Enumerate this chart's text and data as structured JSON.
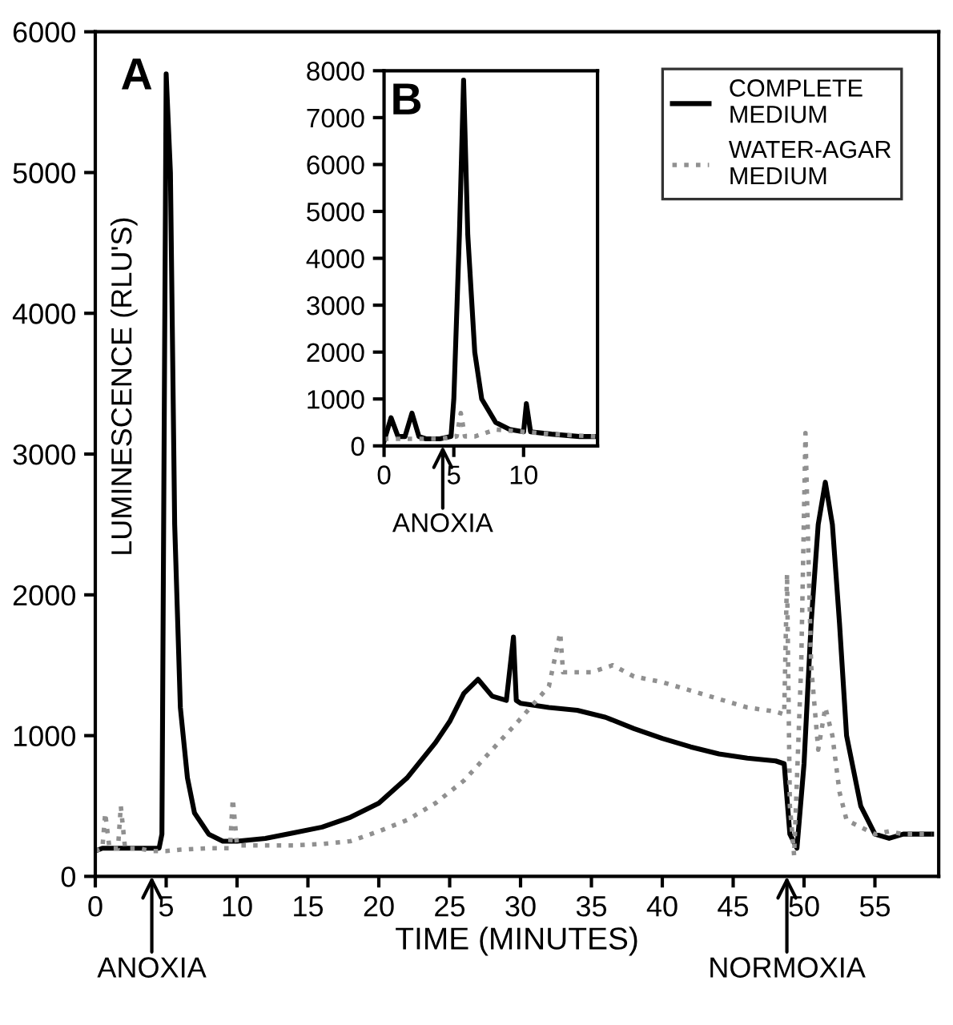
{
  "chart_data": [
    {
      "type": "line",
      "xlabel": "TIME (MINUTES)",
      "ylabel": "LUMINESCENCE (RLU'S)",
      "xlim": [
        0,
        59.5
      ],
      "ylim": [
        0,
        6000
      ],
      "xticks": [
        0,
        5,
        10,
        15,
        20,
        25,
        30,
        35,
        40,
        45,
        50,
        55
      ],
      "yticks": [
        0,
        1000,
        2000,
        3000,
        4000,
        5000,
        6000
      ],
      "grid": false,
      "legend": "top right",
      "annotations": [
        "A",
        "ANOXIA",
        "NORMOXIA"
      ],
      "series": [
        {
          "name": "COMPLETE\nMEDIUM",
          "color": "#000000",
          "line_style": "solid",
          "x": [
            0,
            0.5,
            1,
            2,
            3,
            4.5,
            4.7,
            5.0,
            5.3,
            5.6,
            6,
            6.5,
            7,
            8,
            9,
            10,
            12,
            14,
            16,
            18,
            20,
            22,
            24,
            25,
            26,
            27,
            28,
            29,
            29.5,
            29.7,
            30,
            32,
            34,
            36,
            38,
            40,
            42,
            44,
            46,
            48,
            48.6,
            49,
            49.5,
            50,
            50.5,
            51,
            51.5,
            52,
            52.5,
            53,
            54,
            55,
            56,
            57,
            58,
            59
          ],
          "values": [
            180,
            200,
            200,
            200,
            200,
            200,
            300,
            5700,
            5000,
            2500,
            1200,
            700,
            450,
            300,
            250,
            250,
            270,
            310,
            350,
            420,
            520,
            700,
            950,
            1100,
            1300,
            1400,
            1280,
            1250,
            1700,
            1250,
            1230,
            1200,
            1180,
            1130,
            1050,
            980,
            920,
            870,
            840,
            820,
            800,
            300,
            200,
            800,
            1800,
            2500,
            2800,
            2500,
            1800,
            1000,
            500,
            300,
            270,
            300,
            300,
            300
          ]
        },
        {
          "name": "WATER-AGAR\nMEDIUM",
          "color": "#909090",
          "line_style": "dotted",
          "x": [
            0,
            0.5,
            0.7,
            1,
            1.6,
            1.8,
            2.1,
            3,
            4,
            5,
            6,
            8,
            9.5,
            9.7,
            10,
            12,
            14,
            16,
            18,
            20,
            22,
            24,
            26,
            28,
            30,
            32,
            32.8,
            33,
            34,
            35,
            36.5,
            38,
            40,
            42,
            44,
            46,
            48,
            48.6,
            48.8,
            49,
            49.3,
            49.8,
            50.1,
            50.5,
            51,
            51.5,
            52,
            52.5,
            53,
            54,
            55,
            56,
            57,
            58,
            59
          ],
          "values": [
            180,
            200,
            450,
            200,
            200,
            500,
            200,
            200,
            180,
            180,
            190,
            200,
            200,
            550,
            220,
            220,
            220,
            230,
            250,
            320,
            400,
            520,
            680,
            900,
            1120,
            1350,
            1730,
            1450,
            1450,
            1450,
            1500,
            1420,
            1380,
            1320,
            1260,
            1200,
            1170,
            1150,
            2150,
            500,
            150,
            1500,
            3150,
            1500,
            900,
            1200,
            1000,
            600,
            400,
            350,
            300,
            320,
            300,
            300,
            300
          ]
        }
      ]
    },
    {
      "type": "line",
      "xlim": [
        0,
        15.3
      ],
      "ylim": [
        0,
        8000
      ],
      "xticks": [
        0,
        5,
        10
      ],
      "yticks": [
        0,
        1000,
        2000,
        3000,
        4000,
        5000,
        6000,
        7000,
        8000
      ],
      "grid": false,
      "legend": false,
      "annotations": [
        "B",
        "ANOXIA"
      ],
      "series": [
        {
          "color": "#000000",
          "line_style": "solid",
          "x": [
            0,
            0.5,
            1,
            1.5,
            2,
            2.5,
            3,
            4,
            4.8,
            5,
            5.4,
            5.7,
            6,
            6.5,
            7,
            8,
            9,
            10,
            10.2,
            10.5,
            12,
            14,
            15.3
          ],
          "values": [
            100,
            600,
            200,
            200,
            700,
            200,
            150,
            150,
            200,
            1000,
            4500,
            7800,
            4500,
            2000,
            1000,
            500,
            350,
            300,
            900,
            300,
            250,
            200,
            200
          ]
        },
        {
          "color": "#909090",
          "line_style": "dotted",
          "x": [
            0,
            4,
            5.2,
            5.5,
            5.8,
            6.5,
            8,
            10,
            12,
            15.3
          ],
          "values": [
            150,
            150,
            200,
            700,
            200,
            200,
            350,
            300,
            250,
            200
          ]
        }
      ]
    }
  ]
}
